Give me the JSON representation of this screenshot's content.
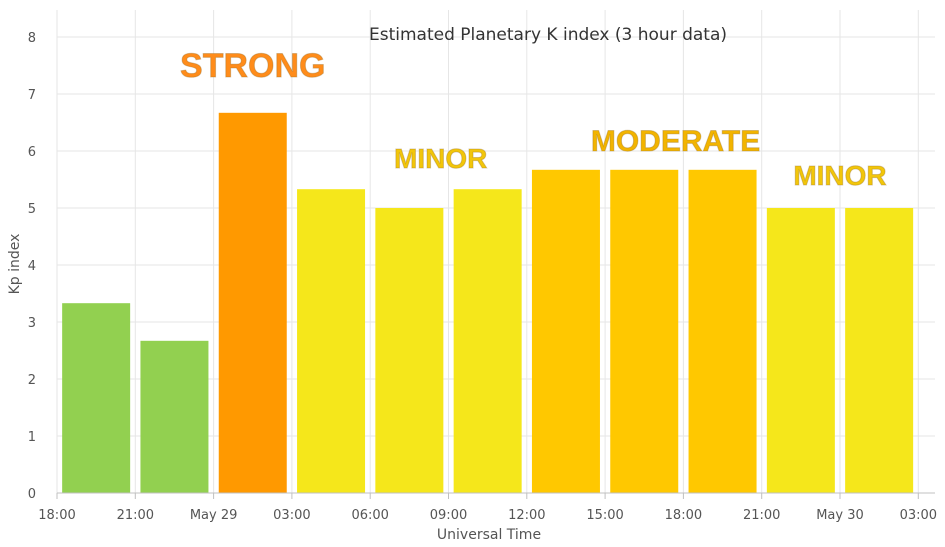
{
  "chart_data": {
    "type": "bar",
    "title": "Estimated Planetary K index (3 hour data)",
    "xlabel": "Universal Time",
    "ylabel": "Kp index",
    "ylim": [
      0,
      8.5
    ],
    "yticks": [
      0,
      1,
      2,
      3,
      4,
      5,
      6,
      7,
      8
    ],
    "x_ticks": [
      "18:00",
      "21:00",
      "May 29",
      "03:00",
      "06:00",
      "09:00",
      "12:00",
      "15:00",
      "18:00",
      "21:00",
      "May 30",
      "03:00"
    ],
    "grid": true,
    "values": [
      3.33,
      2.67,
      6.67,
      5.33,
      5.0,
      5.33,
      5.67,
      5.67,
      5.67,
      5.0,
      5.0
    ],
    "colors": [
      "#92d050",
      "#92d050",
      "#ff9900",
      "#f5e71b",
      "#f5e71b",
      "#f5e71b",
      "#ffc800",
      "#ffc800",
      "#ffc800",
      "#f5e71b",
      "#f5e71b"
    ],
    "annotations": [
      {
        "text": "STRONG",
        "color": "#ff8c1a",
        "bar": 2,
        "value": 7.3
      },
      {
        "text": "MINOR",
        "color": "#f2c60a",
        "bar": 4.4,
        "value": 5.7
      },
      {
        "text": "MODERATE",
        "color": "#f2b400",
        "bar": 7.4,
        "value": 6.0
      },
      {
        "text": "MINOR",
        "color": "#f2c60a",
        "bar": 9.5,
        "value": 5.4
      }
    ]
  }
}
